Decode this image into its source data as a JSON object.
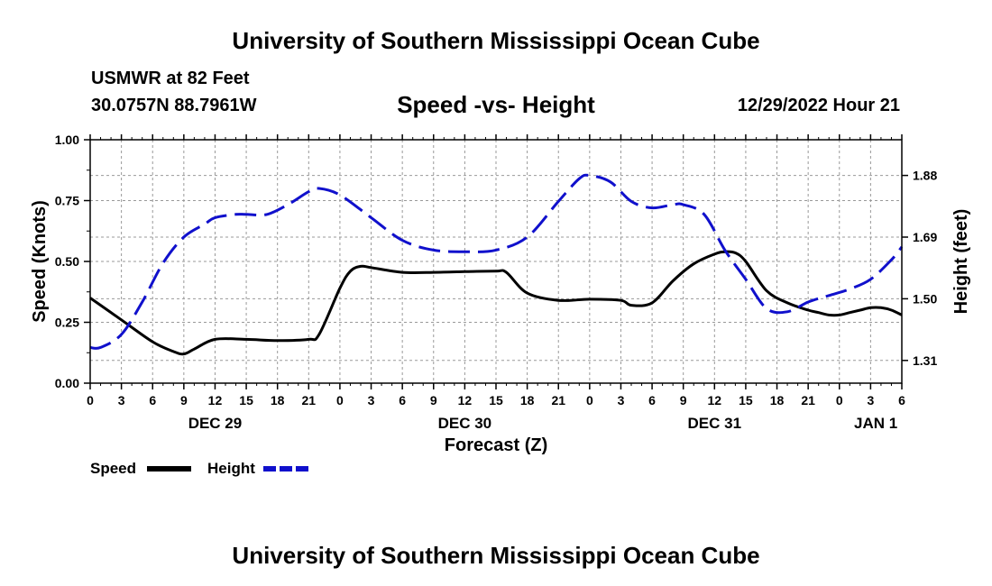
{
  "header": {
    "title": "University of Southern Mississippi Ocean Cube",
    "station": "USMWR at 82 Feet",
    "coords": "30.0757N  88.7961W",
    "datetime": "12/29/2022 Hour 21"
  },
  "footer": {
    "title": "University of Southern Mississippi Ocean Cube"
  },
  "chart_data": {
    "type": "line",
    "title": "Speed -vs- Height",
    "xlabel": "Forecast (Z)",
    "ylabel": "Speed (Knots)",
    "y2label": "Height (feet)",
    "x_range": [
      0,
      78
    ],
    "ylim": [
      0,
      1
    ],
    "y2lim": [
      1.24,
      1.99
    ],
    "yticks": [
      "0.00",
      "0.25",
      "0.50",
      "0.75",
      "1.00"
    ],
    "y2ticks": [
      "1.31",
      "1.50",
      "1.69",
      "1.88"
    ],
    "xtick_labels": [
      "0",
      "3",
      "6",
      "9",
      "12",
      "15",
      "18",
      "21",
      "0",
      "3",
      "6",
      "9",
      "12",
      "15",
      "18",
      "21",
      "0",
      "3",
      "6",
      "9",
      "12",
      "15",
      "18",
      "21",
      "0",
      "3",
      "6"
    ],
    "date_labels": [
      {
        "text": "DEC 29",
        "hour": 12
      },
      {
        "text": "DEC 30",
        "hour": 36
      },
      {
        "text": "DEC 31",
        "hour": 60
      },
      {
        "text": "JAN 1",
        "hour": 75.5
      }
    ],
    "grid": true,
    "legend": "bottom-left",
    "series": [
      {
        "name": "Speed",
        "axis": "left",
        "color": "#000000",
        "style": "solid",
        "x": [
          0,
          3,
          6,
          8,
          9,
          10,
          12,
          15,
          18,
          21,
          22,
          24,
          25,
          26,
          27,
          30,
          33,
          36,
          39,
          40,
          42,
          45,
          48,
          51,
          52,
          54,
          56,
          58,
          60,
          61,
          62,
          63,
          65,
          67,
          69,
          70,
          71,
          72,
          73,
          74,
          75,
          76,
          77,
          78
        ],
        "values": [
          0.35,
          0.26,
          0.17,
          0.13,
          0.12,
          0.14,
          0.18,
          0.18,
          0.175,
          0.18,
          0.2,
          0.39,
          0.46,
          0.48,
          0.475,
          0.455,
          0.455,
          0.458,
          0.46,
          0.455,
          0.37,
          0.34,
          0.345,
          0.34,
          0.32,
          0.33,
          0.42,
          0.49,
          0.53,
          0.54,
          0.535,
          0.5,
          0.38,
          0.33,
          0.3,
          0.29,
          0.28,
          0.28,
          0.29,
          0.3,
          0.31,
          0.31,
          0.3,
          0.28
        ]
      },
      {
        "name": "Height",
        "axis": "right",
        "color": "#1010cc",
        "style": "dashed",
        "x": [
          0,
          1,
          3,
          5,
          7,
          9,
          11,
          12,
          14,
          15,
          17,
          19,
          21,
          22,
          24,
          27,
          30,
          33,
          36,
          39,
          42,
          45,
          47,
          48,
          50,
          52,
          54,
          56,
          57,
          59,
          61,
          63,
          65,
          67,
          69,
          71,
          73,
          75,
          77,
          78
        ],
        "values": [
          1.35,
          1.35,
          1.39,
          1.49,
          1.61,
          1.69,
          1.73,
          1.75,
          1.76,
          1.76,
          1.76,
          1.79,
          1.83,
          1.84,
          1.82,
          1.75,
          1.68,
          1.65,
          1.645,
          1.65,
          1.69,
          1.8,
          1.87,
          1.88,
          1.86,
          1.8,
          1.78,
          1.79,
          1.79,
          1.76,
          1.65,
          1.56,
          1.47,
          1.46,
          1.49,
          1.51,
          1.53,
          1.56,
          1.62,
          1.66
        ]
      }
    ]
  }
}
